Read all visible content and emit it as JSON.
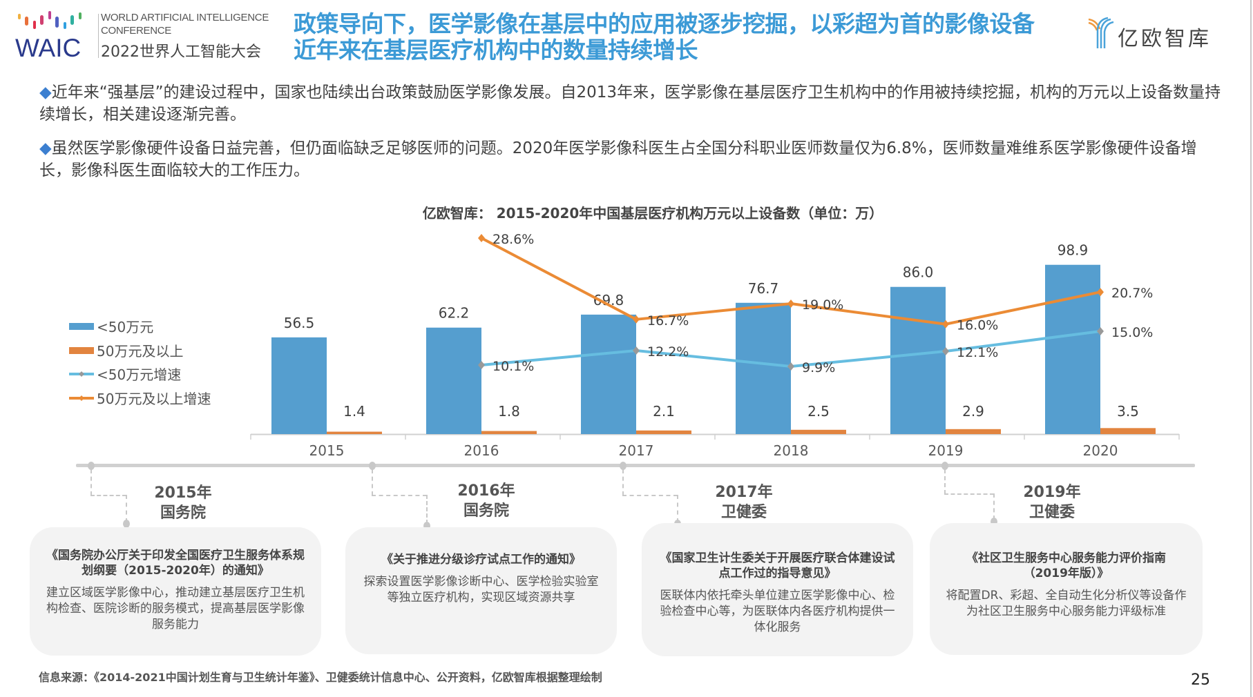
{
  "header": {
    "waic_en_line1": "WORLD ARTIFICIAL INTELLIGENCE",
    "waic_en_line2": "CONFERENCE",
    "waic_cn": "2022世界人工智能大会",
    "waic_logo_text": "WAIC",
    "title_line1": "政策导向下，医学影像在基层中的应用被逐步挖掘，以彩超为首的影像设备",
    "title_line2": "近年来在基层医疗机构中的数量持续增长",
    "brand_logo_text": "亿欧智库"
  },
  "paragraphs": [
    {
      "bullet": "◆",
      "text": "近年来“强基层”的建设过程中，国家也陆续出台政策鼓励医学影像发展。自2013年来，医学影像在基层医疗卫生机构中的作用被持续挖掘，机构的万元以上设备数量持续增长，相关建设逐渐完善。"
    },
    {
      "bullet": "◆",
      "text": "虽然医学影像硬件设备日益完善，但仍面临缺乏足够医师的问题。2020年医学影像科医生占全国分科职业医师数量仅为6.8%，医师数量难维系医学影像硬件设备增长，影像科医生面临较大的工作压力。"
    }
  ],
  "chart_data": {
    "type": "bar",
    "title": "亿欧智库： 2015-2020年中国基层医疗机构万元以上设备数（单位：万）",
    "categories": [
      "2015",
      "2016",
      "2017",
      "2018",
      "2019",
      "2020"
    ],
    "legend_position": "left",
    "grid": false,
    "series": [
      {
        "name": "<50万元",
        "kind": "bar",
        "color": "#559ecf",
        "values": [
          56.5,
          62.2,
          69.8,
          76.7,
          86.0,
          98.9
        ],
        "labels": [
          "56.5",
          "62.2",
          "69.8",
          "76.7",
          "86.0",
          "98.9"
        ]
      },
      {
        "name": "50万元及以上",
        "kind": "bar",
        "color": "#e2843f",
        "values": [
          1.4,
          1.8,
          2.1,
          2.5,
          2.9,
          3.5
        ],
        "labels": [
          "1.4",
          "1.8",
          "2.1",
          "2.5",
          "2.9",
          "3.5"
        ]
      },
      {
        "name": "<50万元增速",
        "kind": "line",
        "color": "#66bde0",
        "marker_color": "#999999",
        "values": [
          null,
          10.1,
          12.2,
          9.9,
          12.1,
          15.0
        ],
        "labels": [
          "",
          "10.1%",
          "12.2%",
          "9.9%",
          "12.1%",
          "15.0%"
        ]
      },
      {
        "name": "50万元及以上增速",
        "kind": "line",
        "color": "#eb8b35",
        "marker_color": "#eb8b35",
        "values": [
          null,
          28.6,
          16.7,
          19.0,
          16.0,
          20.7
        ],
        "labels": [
          "",
          "28.6%",
          "16.7%",
          "19.0%",
          "16.0%",
          "20.7%"
        ]
      }
    ]
  },
  "timeline": [
    {
      "year": "2015年",
      "org": "国务院",
      "doc": "《国务院办公厅关于印发全国医疗卫生服务体系规划纲要（2015-2020年）的通知》",
      "desc": "建立区域医学影像中心，推动建立基层医疗卫生机构检查、医院诊断的服务模式，提高基层医学影像服务能力"
    },
    {
      "year": "2016年",
      "org": "国务院",
      "doc": "《关于推进分级诊疗试点工作的通知》",
      "desc": "探索设置医学影像诊断中心、医学检验实验室等独立医疗机构，实现区域资源共享"
    },
    {
      "year": "2017年",
      "org": "卫健委",
      "doc": "《国家卫生计生委关于开展医疗联合体建设试点工作过的指导意见》",
      "desc": "医联体内依托牵头单位建立医学影像中心、检验检查中心等，为医联体内各医疗机构提供一体化服务"
    },
    {
      "year": "2019年",
      "org": "卫健委",
      "doc": "《社区卫生服务中心服务能力评价指南（2019年版）》",
      "desc": "将配置DR、彩超、全自动生化分析仪等设备作为社区卫生服务中心服务能力评级标准"
    }
  ],
  "footer": {
    "source": "信息来源：《2014-2021中国计划生育与卫生统计年鉴》、卫健委统计信息中心、公开资料，亿欧智库根据整理绘制",
    "page_number": "25"
  }
}
